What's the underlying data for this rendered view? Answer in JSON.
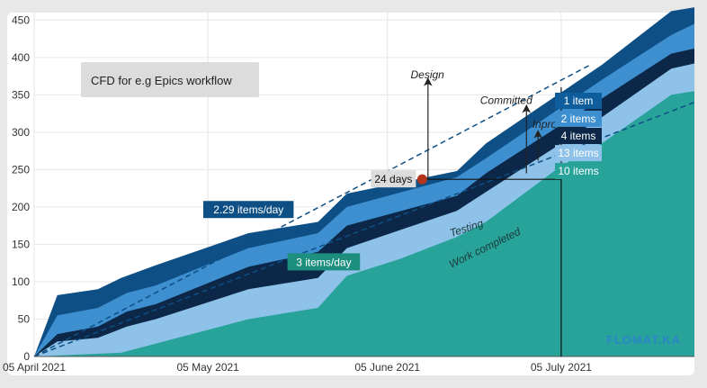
{
  "chart_data": {
    "type": "area",
    "title_box": "CFD for  e.g Epics workflow",
    "watermark": "FLOMAT.KA",
    "x_ticks": [
      "05 April 2021",
      "05 May 2021",
      "05 June 2021",
      "05 July 2021"
    ],
    "x_domain": [
      "2021-04-05",
      "2021-07-28"
    ],
    "ylim": [
      0,
      460
    ],
    "y_ticks": [
      0,
      50,
      100,
      150,
      200,
      250,
      300,
      350,
      400,
      450
    ],
    "grid": true,
    "stacking": "cumulative",
    "series_order_top_to_bottom": [
      "Design",
      "Committed",
      "Inprogress",
      "Testing",
      "Work completed"
    ],
    "series": [
      {
        "name": "Design",
        "color": "#0e4f86",
        "points": [
          [
            "2021-04-05",
            0
          ],
          [
            "2021-04-09",
            82
          ],
          [
            "2021-04-16",
            90
          ],
          [
            "2021-04-20",
            105
          ],
          [
            "2021-04-26",
            122
          ],
          [
            "2021-05-12",
            165
          ],
          [
            "2021-05-24",
            180
          ],
          [
            "2021-05-29",
            218
          ],
          [
            "2021-06-17",
            248
          ],
          [
            "2021-06-22",
            285
          ],
          [
            "2021-07-12",
            390
          ],
          [
            "2021-07-24",
            462
          ],
          [
            "2021-07-28",
            467
          ]
        ]
      },
      {
        "name": "Committed",
        "color": "#3e8fd0",
        "points": [
          [
            "2021-04-05",
            0
          ],
          [
            "2021-04-09",
            55
          ],
          [
            "2021-04-16",
            65
          ],
          [
            "2021-04-21",
            85
          ],
          [
            "2021-04-26",
            95
          ],
          [
            "2021-05-12",
            145
          ],
          [
            "2021-05-24",
            165
          ],
          [
            "2021-05-29",
            200
          ],
          [
            "2021-06-17",
            240
          ],
          [
            "2021-06-22",
            265
          ],
          [
            "2021-07-12",
            370
          ],
          [
            "2021-07-24",
            430
          ],
          [
            "2021-07-28",
            445
          ]
        ]
      },
      {
        "name": "Inprogress",
        "color": "#0c2747",
        "points": [
          [
            "2021-04-05",
            0
          ],
          [
            "2021-04-09",
            30
          ],
          [
            "2021-04-16",
            40
          ],
          [
            "2021-04-21",
            60
          ],
          [
            "2021-04-26",
            70
          ],
          [
            "2021-05-12",
            120
          ],
          [
            "2021-05-24",
            140
          ],
          [
            "2021-05-29",
            175
          ],
          [
            "2021-06-17",
            215
          ],
          [
            "2021-06-22",
            245
          ],
          [
            "2021-07-12",
            345
          ],
          [
            "2021-07-24",
            405
          ],
          [
            "2021-07-28",
            412
          ]
        ]
      },
      {
        "name": "Testing",
        "color": "#8ec2e8",
        "points": [
          [
            "2021-04-05",
            0
          ],
          [
            "2021-04-09",
            20
          ],
          [
            "2021-04-16",
            25
          ],
          [
            "2021-04-21",
            40
          ],
          [
            "2021-04-26",
            50
          ],
          [
            "2021-05-12",
            90
          ],
          [
            "2021-05-24",
            105
          ],
          [
            "2021-05-29",
            145
          ],
          [
            "2021-06-17",
            195
          ],
          [
            "2021-06-22",
            220
          ],
          [
            "2021-07-12",
            320
          ],
          [
            "2021-07-24",
            385
          ],
          [
            "2021-07-28",
            392
          ]
        ]
      },
      {
        "name": "Work completed",
        "color": "#27a39a",
        "points": [
          [
            "2021-04-05",
            0
          ],
          [
            "2021-04-20",
            5
          ],
          [
            "2021-05-12",
            50
          ],
          [
            "2021-05-24",
            65
          ],
          [
            "2021-05-29",
            108
          ],
          [
            "2021-06-07",
            130
          ],
          [
            "2021-06-17",
            160
          ],
          [
            "2021-06-22",
            180
          ],
          [
            "2021-07-05",
            255
          ],
          [
            "2021-07-12",
            285
          ],
          [
            "2021-07-24",
            350
          ],
          [
            "2021-07-28",
            355
          ]
        ]
      }
    ],
    "trend_lines": [
      {
        "points": [
          [
            "2021-04-05",
            0
          ],
          [
            "2021-07-10",
            390
          ]
        ],
        "color": "#0e4f86",
        "dashed": true
      },
      {
        "points": [
          [
            "2021-04-05",
            0
          ],
          [
            "2021-07-28",
            340
          ]
        ],
        "color": "#0e4f86",
        "dashed": true
      }
    ],
    "wip_line": {
      "date": "2021-07-05",
      "yrange": [
        0,
        360
      ]
    },
    "lead_time": {
      "label": "24 days",
      "start": [
        "2021-06-11",
        237
      ],
      "end_date": "2021-07-05"
    },
    "rate_labels": [
      {
        "text": "2.29 items/day",
        "at": [
          "2021-05-12",
          196
        ],
        "bg": "#0e4f86"
      },
      {
        "text": "3 items/day",
        "at": [
          "2021-05-25",
          126
        ],
        "bg": "#1d8f7e"
      }
    ],
    "wip_counts": [
      {
        "text": "1 item",
        "y": 342,
        "bg": "#0e5e9e"
      },
      {
        "text": "2 items",
        "y": 318,
        "bg": "#3e8fd0"
      },
      {
        "text": "4 items",
        "y": 295,
        "bg": "#0c2747"
      },
      {
        "text": "13 items",
        "y": 272,
        "bg": "#8ec2e8"
      },
      {
        "text": "10 items",
        "y": 248,
        "bg": "#27a39a"
      }
    ],
    "stage_annotations": [
      {
        "text": "Design",
        "label_at": [
          "2021-06-09",
          372
        ],
        "arrow_x": "2021-06-12",
        "arrow_from": 237,
        "arrow_to": 370
      },
      {
        "text": "Committed",
        "label_at": [
          "2021-06-21",
          338
        ],
        "arrow_x": "2021-06-29",
        "arrow_from": 245,
        "arrow_to": 334
      },
      {
        "text": "Inprogress",
        "label_at": [
          "2021-06-30",
          306
        ],
        "arrow_x": "2021-07-01",
        "arrow_from": 262,
        "arrow_to": 300
      }
    ],
    "curve_labels": [
      {
        "text": "Testing",
        "at": [
          "2021-06-16",
          160
        ],
        "rotate": -18
      },
      {
        "text": "Work completed",
        "at": [
          "2021-06-16",
          118
        ],
        "rotate": -26
      }
    ]
  }
}
